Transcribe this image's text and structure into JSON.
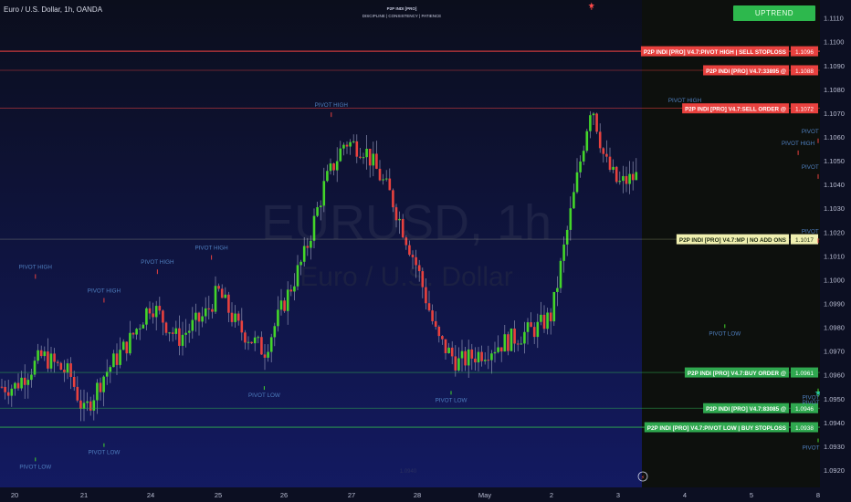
{
  "header": {
    "symbol_info": "Euro / U.S. Dollar, 1h, OANDA",
    "brand_title": "P2P INDI [PRO]",
    "brand_tagline": "DISCIPLINE  |  CONSISTENCY  |  PATIENCE"
  },
  "trend_button": {
    "label": "UPTREND"
  },
  "watermark": {
    "symbol": "EURUSD, 1h",
    "name": "Euro / U.S. Dollar"
  },
  "footer_mark": "1.0940",
  "chart_data": {
    "type": "candlestick",
    "price_axis": {
      "ticks": [
        "1.1110",
        "1.1100",
        "1.1090",
        "1.1080",
        "1.1070",
        "1.1060",
        "1.1050",
        "1.1040",
        "1.1030",
        "1.1020",
        "1.1010",
        "1.1000",
        "1.0990",
        "1.0980",
        "1.0970",
        "1.0960",
        "1.0950",
        "1.0940",
        "1.0930",
        "1.0920"
      ],
      "range": [
        1.0915,
        1.1116
      ]
    },
    "time_axis": {
      "ticks": [
        "20",
        "21",
        "24",
        "25",
        "26",
        "27",
        "28",
        "May",
        "2",
        "3",
        "4",
        "5",
        "8"
      ]
    },
    "series": [
      {
        "price_path": [
          [
            20,
            1.0955
          ],
          [
            20.4,
            1.0968
          ],
          [
            20.8,
            1.096
          ],
          [
            21,
            1.0944
          ],
          [
            21.3,
            1.096
          ],
          [
            21.7,
            1.0975
          ],
          [
            22,
            1.099
          ],
          [
            22.4,
            1.0975
          ],
          [
            22.8,
            1.0985
          ],
          [
            23,
            1.0995
          ],
          [
            23.3,
            1.098
          ],
          [
            23.7,
            1.097
          ],
          [
            24,
            1.099
          ],
          [
            24.3,
            1.101
          ],
          [
            24.6,
            1.104
          ],
          [
            24.9,
            1.1058
          ],
          [
            25.2,
            1.1055
          ],
          [
            25.6,
            1.1035
          ],
          [
            26,
            1.1005
          ],
          [
            26.3,
            1.0975
          ],
          [
            26.6,
            1.0965
          ],
          [
            27,
            1.097
          ],
          [
            27.4,
            1.0975
          ],
          [
            27.8,
            1.098
          ],
          [
            28,
            1.0985
          ],
          [
            28.3,
            1.103
          ],
          [
            28.6,
            1.1075
          ],
          [
            28.8,
            1.105
          ],
          [
            29,
            1.104
          ],
          [
            29.4,
            1.1045
          ],
          [
            29.8,
            1.1055
          ],
          [
            30,
            1.106
          ],
          [
            30.3,
            1.1045
          ],
          [
            30.6,
            1.1025
          ],
          [
            31,
            1.101
          ],
          [
            31.3,
            1.1025
          ],
          [
            31.6,
            1.1035
          ],
          [
            32,
            1.104
          ],
          [
            32.3,
            1.102
          ],
          [
            32.6,
            1.099
          ],
          [
            32.9,
            1.0975
          ],
          [
            33.1,
            1.101
          ],
          [
            33.4,
            1.1045
          ],
          [
            33.7,
            1.103
          ],
          [
            34,
            1.1015
          ],
          [
            34.3,
            1.1005
          ],
          [
            34.6,
            1.101
          ],
          [
            34.9,
            1.103
          ],
          [
            35.1,
            1.099
          ],
          [
            35.3,
            1.097
          ],
          [
            35.6,
            1.0975
          ],
          [
            36,
            1.0985
          ],
          [
            36.3,
            1.099
          ],
          [
            36.6,
            1.097
          ],
          [
            36.8,
            1.0945
          ],
          [
            36.9,
            1.094
          ],
          [
            37.2,
            1.0995
          ],
          [
            37.5,
            1.1005
          ],
          [
            37.8,
            1.101
          ],
          [
            38.1,
            1.103
          ],
          [
            38.4,
            1.1045
          ],
          [
            38.7,
            1.104
          ],
          [
            39,
            1.1055
          ]
        ]
      }
    ],
    "pivots": [
      {
        "label": "PIVOT HIGH",
        "x": 20.3,
        "price": 1.1
      },
      {
        "label": "PIVOT HIGH",
        "x": 21.3,
        "price": 1.099
      },
      {
        "label": "PIVOT HIGH",
        "x": 22.1,
        "price": 1.1002
      },
      {
        "label": "PIVOT HIGH",
        "x": 22.9,
        "price": 1.1008
      },
      {
        "label": "PIVOT HIGH",
        "x": 24.7,
        "price": 1.1068
      },
      {
        "label": "PIVOT HIGH",
        "x": 28.6,
        "price": 1.1113,
        "star": true
      },
      {
        "label": "PIVOT HIGH",
        "x": 30.0,
        "price": 1.107
      },
      {
        "label": "PIVOT HIGH",
        "x": 31.7,
        "price": 1.1052
      },
      {
        "label": "PIVOT HIGH",
        "x": 33.4,
        "price": 1.1057
      },
      {
        "label": "PIVOT HIGH",
        "x": 35.4,
        "price": 1.1042
      },
      {
        "label": "PIVOT HIGH",
        "x": 37.3,
        "price": 1.1015
      },
      {
        "label": "PIVOT LOW",
        "x": 20.3,
        "price": 1.0926
      },
      {
        "label": "PIVOT LOW",
        "x": 21.3,
        "price": 1.0932
      },
      {
        "label": "PIVOT LOW",
        "x": 23.7,
        "price": 1.0956
      },
      {
        "label": "PIVOT LOW",
        "x": 26.5,
        "price": 1.0954
      },
      {
        "label": "PIVOT LOW",
        "x": 30.6,
        "price": 1.0982
      },
      {
        "label": "PIVOT LOW",
        "x": 33.1,
        "price": 1.0953,
        "star": true
      },
      {
        "label": "PIVOT LOW",
        "x": 35.9,
        "price": 1.0955
      },
      {
        "label": "PIVOT LOW",
        "x": 38.0,
        "price": 1.0934
      }
    ],
    "levels": [
      {
        "label": "P2P INDI [PRO] V4.7:PIVOT HIGH | SELL STOPLOSS",
        "price_label": "1.1096",
        "price": 1.1096,
        "color": "#e8413e"
      },
      {
        "label": "P2P INDI [PRO] V4.7:33895 @",
        "price_label": "1.1088",
        "price": 1.1088,
        "color": "#e8413e"
      },
      {
        "label": "P2P INDI [PRO] V4.7:SELL ORDER @",
        "price_label": "1.1072",
        "price": 1.1072,
        "color": "#e8413e"
      },
      {
        "label": "P2P INDI [PRO] V4.7:MP | NO ADD ONS",
        "price_label": "1.1017",
        "price": 1.1017,
        "color": "#f0f0b0"
      },
      {
        "label": "P2P INDI [PRO] V4.7:BUY ORDER @",
        "price_label": "1.0961",
        "price": 1.0961,
        "color": "#2fa84f"
      },
      {
        "label": "P2P INDI [PRO] V4.7:83085 @",
        "price_label": "1.0946",
        "price": 1.0946,
        "color": "#2fa84f"
      },
      {
        "label": "P2P INDI [PRO] V4.7:PIVOT LOW | BUY STOPLOSS",
        "price_label": "1.0938",
        "price": 1.0938,
        "color": "#2fa84f"
      }
    ],
    "colors": {
      "up": "#43d52a",
      "down": "#e8413e",
      "background": "#0c0f22",
      "future": "#0d100d"
    }
  }
}
